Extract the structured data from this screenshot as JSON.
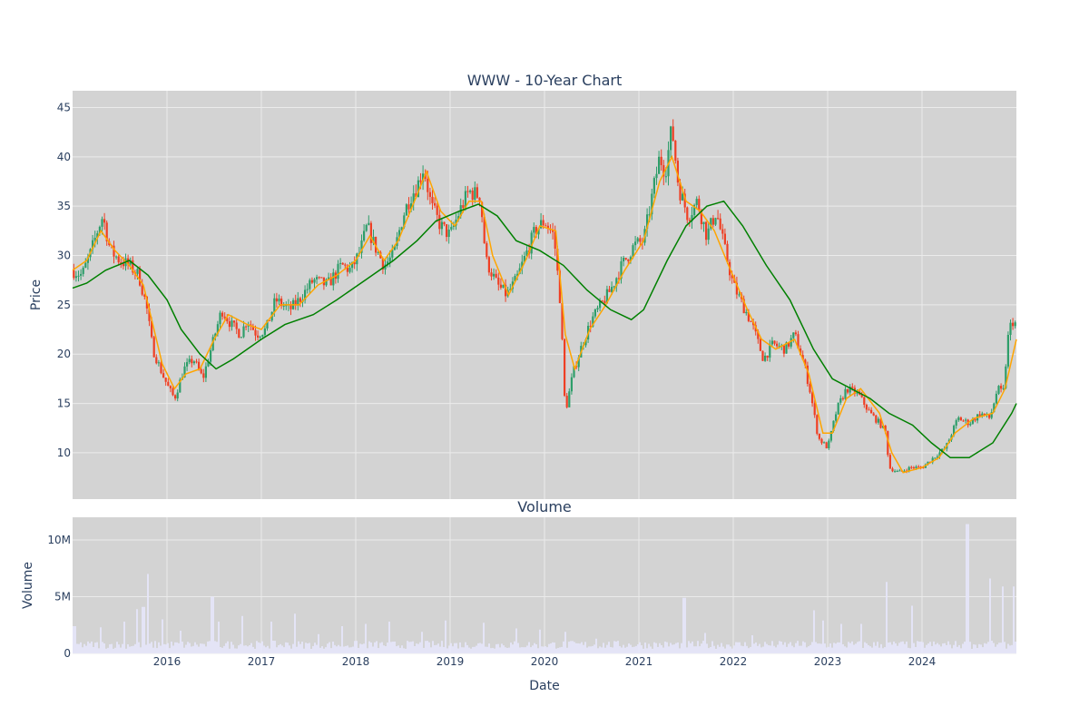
{
  "chart_data": [
    {
      "type": "candlestick",
      "title": "WWW - 10-Year Chart",
      "ylabel": "Price",
      "xlabel": "",
      "x_range": [
        2015.0,
        2025.0
      ],
      "ylim": [
        5.3,
        46.7
      ],
      "y_ticks": [
        10,
        15,
        20,
        25,
        30,
        35,
        40,
        45
      ],
      "grid": true,
      "colors": {
        "up": "#2e9e6a",
        "down": "#ef3f24",
        "ma_short": "#ffa500",
        "ma_long": "#008000",
        "plot_bg": "#d3d3d3",
        "grid": "#ebebeb"
      },
      "price_path": [
        [
          2015.0,
          28.5
        ],
        [
          2015.1,
          28.0
        ],
        [
          2015.2,
          30.5
        ],
        [
          2015.28,
          33.0
        ],
        [
          2015.32,
          34.0
        ],
        [
          2015.4,
          30.5
        ],
        [
          2015.5,
          29.5
        ],
        [
          2015.6,
          29.0
        ],
        [
          2015.7,
          28.0
        ],
        [
          2015.78,
          25.0
        ],
        [
          2015.85,
          20.5
        ],
        [
          2015.95,
          18.0
        ],
        [
          2016.02,
          16.5
        ],
        [
          2016.08,
          15.5
        ],
        [
          2016.18,
          18.5
        ],
        [
          2016.28,
          19.5
        ],
        [
          2016.38,
          17.5
        ],
        [
          2016.48,
          21.0
        ],
        [
          2016.58,
          24.5
        ],
        [
          2016.68,
          23.0
        ],
        [
          2016.78,
          22.0
        ],
        [
          2016.85,
          23.5
        ],
        [
          2016.95,
          22.0
        ],
        [
          2017.05,
          22.5
        ],
        [
          2017.15,
          25.5
        ],
        [
          2017.3,
          24.5
        ],
        [
          2017.4,
          25.5
        ],
        [
          2017.55,
          27.5
        ],
        [
          2017.7,
          27.0
        ],
        [
          2017.85,
          29.0
        ],
        [
          2017.95,
          28.5
        ],
        [
          2018.05,
          30.5
        ],
        [
          2018.12,
          33.0
        ],
        [
          2018.2,
          31.0
        ],
        [
          2018.3,
          29.0
        ],
        [
          2018.4,
          30.0
        ],
        [
          2018.5,
          34.0
        ],
        [
          2018.58,
          36.0
        ],
        [
          2018.65,
          37.0
        ],
        [
          2018.72,
          39.0
        ],
        [
          2018.8,
          35.0
        ],
        [
          2018.9,
          33.0
        ],
        [
          2019.0,
          32.0
        ],
        [
          2019.1,
          34.5
        ],
        [
          2019.2,
          36.5
        ],
        [
          2019.32,
          36.0
        ],
        [
          2019.38,
          29.5
        ],
        [
          2019.5,
          27.0
        ],
        [
          2019.6,
          26.0
        ],
        [
          2019.7,
          27.5
        ],
        [
          2019.8,
          30.0
        ],
        [
          2019.9,
          32.5
        ],
        [
          2020.0,
          33.5
        ],
        [
          2020.1,
          32.0
        ],
        [
          2020.17,
          25.0
        ],
        [
          2020.22,
          14.0
        ],
        [
          2020.3,
          18.0
        ],
        [
          2020.4,
          21.0
        ],
        [
          2020.5,
          23.5
        ],
        [
          2020.6,
          25.0
        ],
        [
          2020.7,
          26.5
        ],
        [
          2020.82,
          29.0
        ],
        [
          2020.95,
          31.0
        ],
        [
          2021.05,
          31.5
        ],
        [
          2021.15,
          36.5
        ],
        [
          2021.22,
          40.0
        ],
        [
          2021.28,
          38.5
        ],
        [
          2021.35,
          43.0
        ],
        [
          2021.42,
          37.0
        ],
        [
          2021.52,
          34.0
        ],
        [
          2021.62,
          35.5
        ],
        [
          2021.72,
          32.0
        ],
        [
          2021.82,
          34.5
        ],
        [
          2021.9,
          31.0
        ],
        [
          2022.0,
          27.0
        ],
        [
          2022.1,
          25.0
        ],
        [
          2022.2,
          23.0
        ],
        [
          2022.32,
          19.5
        ],
        [
          2022.42,
          21.0
        ],
        [
          2022.55,
          20.5
        ],
        [
          2022.65,
          22.0
        ],
        [
          2022.75,
          19.0
        ],
        [
          2022.82,
          16.0
        ],
        [
          2022.9,
          11.5
        ],
        [
          2023.0,
          10.5
        ],
        [
          2023.1,
          14.5
        ],
        [
          2023.2,
          16.5
        ],
        [
          2023.32,
          16.0
        ],
        [
          2023.45,
          14.0
        ],
        [
          2023.55,
          13.0
        ],
        [
          2023.62,
          12.0
        ],
        [
          2023.65,
          8.5
        ],
        [
          2023.75,
          8.0
        ],
        [
          2023.88,
          8.5
        ],
        [
          2024.0,
          8.5
        ],
        [
          2024.12,
          9.5
        ],
        [
          2024.25,
          10.5
        ],
        [
          2024.38,
          13.5
        ],
        [
          2024.5,
          13.0
        ],
        [
          2024.62,
          14.0
        ],
        [
          2024.72,
          13.5
        ],
        [
          2024.8,
          16.5
        ],
        [
          2024.86,
          16.0
        ],
        [
          2024.92,
          22.5
        ],
        [
          2024.97,
          23.5
        ],
        [
          2025.0,
          22.8
        ]
      ],
      "ma_short_path": [
        [
          2015.0,
          28.5
        ],
        [
          2015.15,
          29.5
        ],
        [
          2015.3,
          32.5
        ],
        [
          2015.45,
          30.5
        ],
        [
          2015.6,
          29.0
        ],
        [
          2015.75,
          27.0
        ],
        [
          2015.85,
          23.0
        ],
        [
          2015.95,
          19.0
        ],
        [
          2016.08,
          16.5
        ],
        [
          2016.2,
          18.0
        ],
        [
          2016.35,
          18.5
        ],
        [
          2016.5,
          21.5
        ],
        [
          2016.65,
          24.0
        ],
        [
          2016.85,
          23.0
        ],
        [
          2017.0,
          22.5
        ],
        [
          2017.2,
          25.0
        ],
        [
          2017.4,
          25.0
        ],
        [
          2017.6,
          27.0
        ],
        [
          2017.8,
          28.0
        ],
        [
          2018.0,
          29.5
        ],
        [
          2018.15,
          32.0
        ],
        [
          2018.3,
          29.5
        ],
        [
          2018.45,
          31.5
        ],
        [
          2018.6,
          35.0
        ],
        [
          2018.75,
          38.5
        ],
        [
          2018.9,
          34.5
        ],
        [
          2019.05,
          33.0
        ],
        [
          2019.2,
          35.5
        ],
        [
          2019.33,
          35.5
        ],
        [
          2019.45,
          30.0
        ],
        [
          2019.62,
          26.0
        ],
        [
          2019.8,
          29.5
        ],
        [
          2019.95,
          33.0
        ],
        [
          2020.12,
          32.5
        ],
        [
          2020.22,
          22.0
        ],
        [
          2020.32,
          18.5
        ],
        [
          2020.48,
          22.5
        ],
        [
          2020.65,
          25.0
        ],
        [
          2020.85,
          28.5
        ],
        [
          2021.05,
          31.5
        ],
        [
          2021.22,
          37.5
        ],
        [
          2021.35,
          40.0
        ],
        [
          2021.5,
          35.5
        ],
        [
          2021.65,
          34.5
        ],
        [
          2021.8,
          32.5
        ],
        [
          2021.95,
          29.0
        ],
        [
          2022.15,
          24.5
        ],
        [
          2022.3,
          21.5
        ],
        [
          2022.45,
          20.5
        ],
        [
          2022.65,
          21.5
        ],
        [
          2022.8,
          18.0
        ],
        [
          2022.95,
          12.0
        ],
        [
          2023.05,
          12.0
        ],
        [
          2023.2,
          15.5
        ],
        [
          2023.35,
          16.5
        ],
        [
          2023.55,
          14.0
        ],
        [
          2023.68,
          10.0
        ],
        [
          2023.8,
          8.0
        ],
        [
          2024.0,
          8.5
        ],
        [
          2024.18,
          9.5
        ],
        [
          2024.35,
          12.0
        ],
        [
          2024.55,
          13.5
        ],
        [
          2024.75,
          14.0
        ],
        [
          2024.88,
          16.5
        ],
        [
          2025.0,
          21.5
        ]
      ],
      "ma_long_path": [
        [
          2015.0,
          26.7
        ],
        [
          2015.15,
          27.2
        ],
        [
          2015.35,
          28.5
        ],
        [
          2015.6,
          29.5
        ],
        [
          2015.8,
          28.0
        ],
        [
          2016.0,
          25.5
        ],
        [
          2016.15,
          22.5
        ],
        [
          2016.35,
          20.0
        ],
        [
          2016.52,
          18.5
        ],
        [
          2016.7,
          19.5
        ],
        [
          2017.0,
          21.5
        ],
        [
          2017.25,
          23.0
        ],
        [
          2017.55,
          24.0
        ],
        [
          2017.8,
          25.5
        ],
        [
          2018.1,
          27.5
        ],
        [
          2018.4,
          29.5
        ],
        [
          2018.65,
          31.5
        ],
        [
          2018.85,
          33.5
        ],
        [
          2019.1,
          34.5
        ],
        [
          2019.3,
          35.2
        ],
        [
          2019.5,
          34.0
        ],
        [
          2019.7,
          31.5
        ],
        [
          2019.95,
          30.5
        ],
        [
          2020.2,
          29.0
        ],
        [
          2020.45,
          26.5
        ],
        [
          2020.7,
          24.5
        ],
        [
          2020.92,
          23.5
        ],
        [
          2021.05,
          24.5
        ],
        [
          2021.3,
          29.5
        ],
        [
          2021.5,
          33.0
        ],
        [
          2021.72,
          35.0
        ],
        [
          2021.9,
          35.5
        ],
        [
          2022.1,
          33.0
        ],
        [
          2022.35,
          29.0
        ],
        [
          2022.6,
          25.5
        ],
        [
          2022.85,
          20.5
        ],
        [
          2023.05,
          17.5
        ],
        [
          2023.25,
          16.5
        ],
        [
          2023.45,
          15.5
        ],
        [
          2023.65,
          14.0
        ],
        [
          2023.9,
          12.8
        ],
        [
          2024.1,
          11.0
        ],
        [
          2024.3,
          9.5
        ],
        [
          2024.5,
          9.5
        ],
        [
          2024.75,
          11.0
        ],
        [
          2024.95,
          14.0
        ],
        [
          2025.0,
          15.0
        ]
      ]
    },
    {
      "type": "bar",
      "title": "Volume",
      "xlabel": "Date",
      "ylabel": "Volume",
      "x_range": [
        2015.0,
        2025.0
      ],
      "ylim": [
        0,
        12000000
      ],
      "y_ticks": [
        0,
        5000000,
        10000000
      ],
      "y_tick_labels": [
        "0",
        "5M",
        "10M"
      ],
      "x_ticks": [
        2016,
        2017,
        2018,
        2019,
        2020,
        2021,
        2022,
        2023,
        2024
      ],
      "x_tick_labels": [
        "2016",
        "2017",
        "2018",
        "2019",
        "2020",
        "2021",
        "2022",
        "2023",
        "2024"
      ],
      "bar_color": "#e6e6fa",
      "baseline_volume": 800000,
      "spikes": [
        [
          2015.02,
          2400000
        ],
        [
          2015.3,
          2300000
        ],
        [
          2015.55,
          2800000
        ],
        [
          2015.68,
          3900000
        ],
        [
          2015.75,
          4100000
        ],
        [
          2015.79,
          7000000
        ],
        [
          2015.95,
          3000000
        ],
        [
          2016.15,
          2000000
        ],
        [
          2016.48,
          5000000
        ],
        [
          2016.55,
          2800000
        ],
        [
          2016.8,
          3300000
        ],
        [
          2017.1,
          2800000
        ],
        [
          2017.35,
          3500000
        ],
        [
          2017.6,
          1700000
        ],
        [
          2017.85,
          2400000
        ],
        [
          2018.1,
          2600000
        ],
        [
          2018.35,
          2800000
        ],
        [
          2018.7,
          1900000
        ],
        [
          2018.95,
          2900000
        ],
        [
          2019.35,
          2700000
        ],
        [
          2019.7,
          2200000
        ],
        [
          2019.95,
          2100000
        ],
        [
          2020.22,
          1900000
        ],
        [
          2020.55,
          1300000
        ],
        [
          2021.48,
          4900000
        ],
        [
          2021.7,
          1800000
        ],
        [
          2022.2,
          1600000
        ],
        [
          2022.85,
          3800000
        ],
        [
          2022.95,
          2900000
        ],
        [
          2023.15,
          2600000
        ],
        [
          2023.35,
          2600000
        ],
        [
          2023.63,
          6300000
        ],
        [
          2023.9,
          4200000
        ],
        [
          2024.48,
          11400000
        ],
        [
          2024.72,
          6600000
        ],
        [
          2024.85,
          5900000
        ],
        [
          2024.97,
          5900000
        ]
      ]
    }
  ]
}
